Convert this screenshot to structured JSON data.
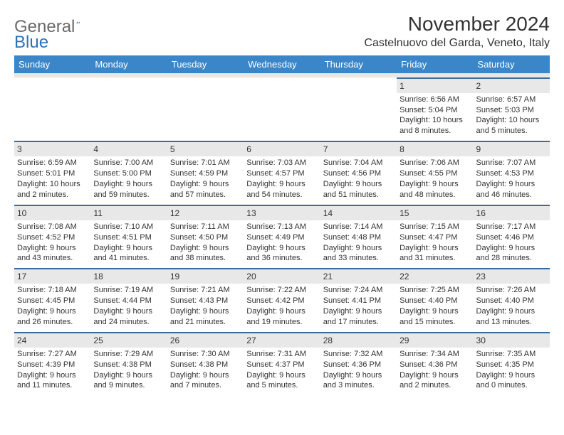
{
  "logo": {
    "text1": "General",
    "text2": "Blue"
  },
  "title": "November 2024",
  "location": "Castelnuovo del Garda, Veneto, Italy",
  "colors": {
    "header_bg": "#3a86c8",
    "header_fg": "#ffffff",
    "daynum_bg": "#e8e8e8",
    "border": "#3a6a9a",
    "text": "#333333",
    "logo_gray": "#6a6a6a",
    "logo_blue": "#2a73b8"
  },
  "day_headers": [
    "Sunday",
    "Monday",
    "Tuesday",
    "Wednesday",
    "Thursday",
    "Friday",
    "Saturday"
  ],
  "weeks": [
    [
      null,
      null,
      null,
      null,
      null,
      {
        "n": "1",
        "sr": "Sunrise: 6:56 AM",
        "ss": "Sunset: 5:04 PM",
        "d1": "Daylight: 10 hours",
        "d2": "and 8 minutes."
      },
      {
        "n": "2",
        "sr": "Sunrise: 6:57 AM",
        "ss": "Sunset: 5:03 PM",
        "d1": "Daylight: 10 hours",
        "d2": "and 5 minutes."
      }
    ],
    [
      {
        "n": "3",
        "sr": "Sunrise: 6:59 AM",
        "ss": "Sunset: 5:01 PM",
        "d1": "Daylight: 10 hours",
        "d2": "and 2 minutes."
      },
      {
        "n": "4",
        "sr": "Sunrise: 7:00 AM",
        "ss": "Sunset: 5:00 PM",
        "d1": "Daylight: 9 hours",
        "d2": "and 59 minutes."
      },
      {
        "n": "5",
        "sr": "Sunrise: 7:01 AM",
        "ss": "Sunset: 4:59 PM",
        "d1": "Daylight: 9 hours",
        "d2": "and 57 minutes."
      },
      {
        "n": "6",
        "sr": "Sunrise: 7:03 AM",
        "ss": "Sunset: 4:57 PM",
        "d1": "Daylight: 9 hours",
        "d2": "and 54 minutes."
      },
      {
        "n": "7",
        "sr": "Sunrise: 7:04 AM",
        "ss": "Sunset: 4:56 PM",
        "d1": "Daylight: 9 hours",
        "d2": "and 51 minutes."
      },
      {
        "n": "8",
        "sr": "Sunrise: 7:06 AM",
        "ss": "Sunset: 4:55 PM",
        "d1": "Daylight: 9 hours",
        "d2": "and 48 minutes."
      },
      {
        "n": "9",
        "sr": "Sunrise: 7:07 AM",
        "ss": "Sunset: 4:53 PM",
        "d1": "Daylight: 9 hours",
        "d2": "and 46 minutes."
      }
    ],
    [
      {
        "n": "10",
        "sr": "Sunrise: 7:08 AM",
        "ss": "Sunset: 4:52 PM",
        "d1": "Daylight: 9 hours",
        "d2": "and 43 minutes."
      },
      {
        "n": "11",
        "sr": "Sunrise: 7:10 AM",
        "ss": "Sunset: 4:51 PM",
        "d1": "Daylight: 9 hours",
        "d2": "and 41 minutes."
      },
      {
        "n": "12",
        "sr": "Sunrise: 7:11 AM",
        "ss": "Sunset: 4:50 PM",
        "d1": "Daylight: 9 hours",
        "d2": "and 38 minutes."
      },
      {
        "n": "13",
        "sr": "Sunrise: 7:13 AM",
        "ss": "Sunset: 4:49 PM",
        "d1": "Daylight: 9 hours",
        "d2": "and 36 minutes."
      },
      {
        "n": "14",
        "sr": "Sunrise: 7:14 AM",
        "ss": "Sunset: 4:48 PM",
        "d1": "Daylight: 9 hours",
        "d2": "and 33 minutes."
      },
      {
        "n": "15",
        "sr": "Sunrise: 7:15 AM",
        "ss": "Sunset: 4:47 PM",
        "d1": "Daylight: 9 hours",
        "d2": "and 31 minutes."
      },
      {
        "n": "16",
        "sr": "Sunrise: 7:17 AM",
        "ss": "Sunset: 4:46 PM",
        "d1": "Daylight: 9 hours",
        "d2": "and 28 minutes."
      }
    ],
    [
      {
        "n": "17",
        "sr": "Sunrise: 7:18 AM",
        "ss": "Sunset: 4:45 PM",
        "d1": "Daylight: 9 hours",
        "d2": "and 26 minutes."
      },
      {
        "n": "18",
        "sr": "Sunrise: 7:19 AM",
        "ss": "Sunset: 4:44 PM",
        "d1": "Daylight: 9 hours",
        "d2": "and 24 minutes."
      },
      {
        "n": "19",
        "sr": "Sunrise: 7:21 AM",
        "ss": "Sunset: 4:43 PM",
        "d1": "Daylight: 9 hours",
        "d2": "and 21 minutes."
      },
      {
        "n": "20",
        "sr": "Sunrise: 7:22 AM",
        "ss": "Sunset: 4:42 PM",
        "d1": "Daylight: 9 hours",
        "d2": "and 19 minutes."
      },
      {
        "n": "21",
        "sr": "Sunrise: 7:24 AM",
        "ss": "Sunset: 4:41 PM",
        "d1": "Daylight: 9 hours",
        "d2": "and 17 minutes."
      },
      {
        "n": "22",
        "sr": "Sunrise: 7:25 AM",
        "ss": "Sunset: 4:40 PM",
        "d1": "Daylight: 9 hours",
        "d2": "and 15 minutes."
      },
      {
        "n": "23",
        "sr": "Sunrise: 7:26 AM",
        "ss": "Sunset: 4:40 PM",
        "d1": "Daylight: 9 hours",
        "d2": "and 13 minutes."
      }
    ],
    [
      {
        "n": "24",
        "sr": "Sunrise: 7:27 AM",
        "ss": "Sunset: 4:39 PM",
        "d1": "Daylight: 9 hours",
        "d2": "and 11 minutes."
      },
      {
        "n": "25",
        "sr": "Sunrise: 7:29 AM",
        "ss": "Sunset: 4:38 PM",
        "d1": "Daylight: 9 hours",
        "d2": "and 9 minutes."
      },
      {
        "n": "26",
        "sr": "Sunrise: 7:30 AM",
        "ss": "Sunset: 4:38 PM",
        "d1": "Daylight: 9 hours",
        "d2": "and 7 minutes."
      },
      {
        "n": "27",
        "sr": "Sunrise: 7:31 AM",
        "ss": "Sunset: 4:37 PM",
        "d1": "Daylight: 9 hours",
        "d2": "and 5 minutes."
      },
      {
        "n": "28",
        "sr": "Sunrise: 7:32 AM",
        "ss": "Sunset: 4:36 PM",
        "d1": "Daylight: 9 hours",
        "d2": "and 3 minutes."
      },
      {
        "n": "29",
        "sr": "Sunrise: 7:34 AM",
        "ss": "Sunset: 4:36 PM",
        "d1": "Daylight: 9 hours",
        "d2": "and 2 minutes."
      },
      {
        "n": "30",
        "sr": "Sunrise: 7:35 AM",
        "ss": "Sunset: 4:35 PM",
        "d1": "Daylight: 9 hours",
        "d2": "and 0 minutes."
      }
    ]
  ]
}
